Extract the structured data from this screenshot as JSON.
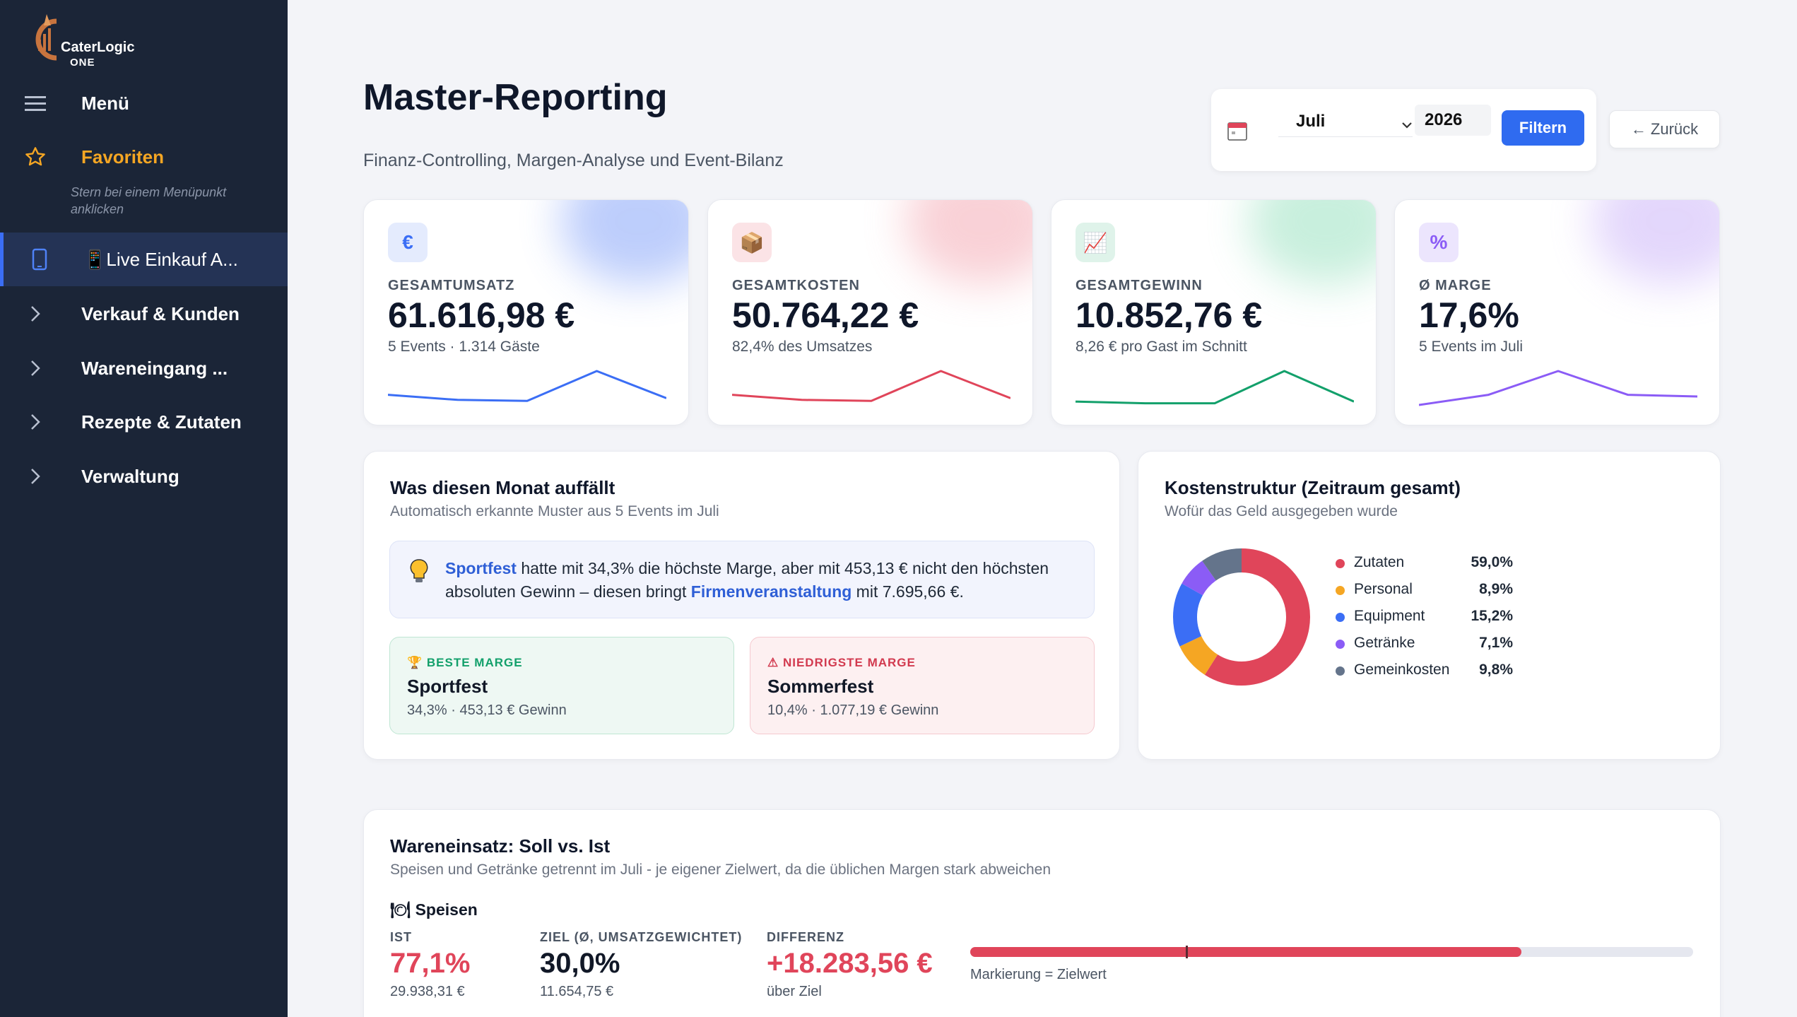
{
  "colors": {
    "accent": "#2f6bf0",
    "sidebar_bg": "#1b2537",
    "favorite": "#f5a623",
    "danger": "#e0455a",
    "success": "#13a06b",
    "purple": "#8b5cf6"
  },
  "brand": {
    "line1": "CaterLogic",
    "line2": "ONE"
  },
  "sidebar": {
    "menu_label": "Menü",
    "favorites_label": "Favoriten",
    "favorites_hint": "Stern bei einem Menüpunkt anklicken",
    "items": [
      {
        "label": "📱Live Einkauf A...",
        "icon": "tablet-icon",
        "active": true
      },
      {
        "label": "Verkauf & Kunden",
        "icon": "chevron-right-icon"
      },
      {
        "label": "Wareneingang ...",
        "icon": "chevron-right-icon"
      },
      {
        "label": "Rezepte & Zutaten",
        "icon": "chevron-right-icon"
      },
      {
        "label": "Verwaltung",
        "icon": "chevron-right-icon"
      }
    ]
  },
  "header": {
    "title": "Master-Reporting",
    "subtitle": "Finanz-Controlling, Margen-Analyse und Event-Bilanz"
  },
  "filter": {
    "month": "Juli",
    "year": "2026",
    "button": "Filtern",
    "back": "← Zurück"
  },
  "kpis": [
    {
      "icon": "€",
      "label": "GESAMTUMSATZ",
      "value": "61.616,98 €",
      "note": "5 Events · 1.314 Gäste",
      "color": "#3b6ef5",
      "spark": [
        0.3,
        0.15,
        0.12,
        1.0,
        0.2
      ]
    },
    {
      "icon": "📦",
      "label": "GESAMTKOSTEN",
      "value": "50.764,22 €",
      "note": "82,4% des Umsatzes",
      "color": "#e0455a",
      "spark": [
        0.3,
        0.15,
        0.12,
        1.0,
        0.2
      ]
    },
    {
      "icon": "📈",
      "label": "GESAMTGEWINN",
      "value": "10.852,76 €",
      "note": "8,26 € pro Gast im Schnitt",
      "color": "#13a06b",
      "spark": [
        0.1,
        0.05,
        0.05,
        1.0,
        0.1
      ]
    },
    {
      "icon": "%",
      "label": "Ø MARGE",
      "value": "17,6%",
      "note": "5 Events im Juli",
      "color": "#8b5cf6",
      "spark": [
        0.0,
        0.3,
        1.0,
        0.3,
        0.25
      ]
    }
  ],
  "insights": {
    "title": "Was diesen Monat auffällt",
    "subtitle": "Automatisch erkannte Muster aus 5 Events im Juli",
    "event1": "Sportfest",
    "text1": " hatte mit 34,3% die höchste Marge, aber mit 453,13 € nicht den höchsten absoluten Gewinn – diesen bringt ",
    "event2": "Firmenveranstaltung",
    "text2": " mit 7.695,66 €.",
    "best": {
      "tag": "🏆 BESTE MARGE",
      "name": "Sportfest",
      "note": "34,3% · 453,13 € Gewinn"
    },
    "worst": {
      "tag": "⚠ NIEDRIGSTE MARGE",
      "name": "Sommerfest",
      "note": "10,4% · 1.077,19 € Gewinn"
    }
  },
  "cost_structure": {
    "title": "Kostenstruktur (Zeitraum gesamt)",
    "subtitle": "Wofür das Geld ausgegeben wurde"
  },
  "chart_data": {
    "type": "pie",
    "categories": [
      "Zutaten",
      "Personal",
      "Equipment",
      "Getränke",
      "Gemeinkosten"
    ],
    "values": [
      59.0,
      8.9,
      15.2,
      7.1,
      9.8
    ],
    "labels": [
      "59,0%",
      "8,9%",
      "15,2%",
      "7,1%",
      "9,8%"
    ],
    "colors": [
      "#e0455a",
      "#f5a623",
      "#3b6ef5",
      "#8b5cf6",
      "#64748b"
    ],
    "legend": "right"
  },
  "wareneinsatz": {
    "title": "Wareneinsatz: Soll vs. Ist",
    "subtitle": "Speisen und Getränke getrennt im Juli - je eigener Zielwert, da die üblichen Margen stark abweichen",
    "section": "🍽 Speisen",
    "ist_label": "IST",
    "ist_value": "77,1%",
    "ist_note": "29.938,31 €",
    "ziel_label": "ZIEL (Ø, UMSATZGEWICHTET)",
    "ziel_value": "30,0%",
    "ziel_note": "11.654,75 €",
    "diff_label": "DIFFERENZ",
    "diff_value": "+18.283,56 €",
    "diff_note": "über Ziel",
    "bar_fill": 0.771,
    "bar_target": 0.3,
    "bar_hint": "Markierung = Zielwert"
  }
}
